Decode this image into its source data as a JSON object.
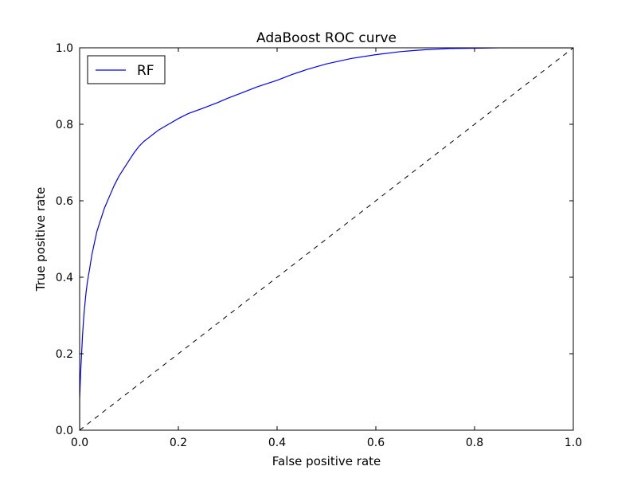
{
  "chart_data": {
    "type": "line",
    "title": "AdaBoost ROC curve",
    "xlabel": "False positive rate",
    "ylabel": "True positive rate",
    "xlim": [
      0.0,
      1.0
    ],
    "ylim": [
      0.0,
      1.0
    ],
    "xticks": [
      "0.0",
      "0.2",
      "0.4",
      "0.6",
      "0.8",
      "1.0"
    ],
    "yticks": [
      "0.0",
      "0.2",
      "0.4",
      "0.6",
      "0.8",
      "1.0"
    ],
    "grid": false,
    "legend": {
      "placement": "top-left",
      "entries": [
        "RF"
      ]
    },
    "series": [
      {
        "name": "RF",
        "color": "#0000ff",
        "style": "solid",
        "x": [
          0.0,
          0.0,
          0.002,
          0.004,
          0.006,
          0.008,
          0.01,
          0.013,
          0.016,
          0.02,
          0.025,
          0.03,
          0.035,
          0.04,
          0.045,
          0.05,
          0.055,
          0.06,
          0.07,
          0.08,
          0.09,
          0.1,
          0.11,
          0.12,
          0.13,
          0.14,
          0.15,
          0.16,
          0.18,
          0.2,
          0.22,
          0.25,
          0.28,
          0.3,
          0.33,
          0.36,
          0.4,
          0.43,
          0.46,
          0.5,
          0.55,
          0.6,
          0.65,
          0.7,
          0.75,
          0.8,
          0.85,
          0.9,
          0.95,
          1.0
        ],
        "y": [
          0.0,
          0.08,
          0.15,
          0.2,
          0.25,
          0.29,
          0.32,
          0.36,
          0.39,
          0.42,
          0.46,
          0.49,
          0.52,
          0.54,
          0.56,
          0.58,
          0.595,
          0.61,
          0.64,
          0.665,
          0.685,
          0.705,
          0.725,
          0.742,
          0.755,
          0.765,
          0.775,
          0.785,
          0.8,
          0.815,
          0.828,
          0.842,
          0.857,
          0.868,
          0.883,
          0.898,
          0.915,
          0.93,
          0.943,
          0.958,
          0.972,
          0.982,
          0.99,
          0.995,
          0.998,
          0.999,
          1.0,
          1.0,
          1.0,
          1.0
        ]
      },
      {
        "name": "",
        "color": "#000000",
        "style": "dashed",
        "x": [
          0.0,
          1.0
        ],
        "y": [
          0.0,
          1.0
        ]
      }
    ]
  }
}
